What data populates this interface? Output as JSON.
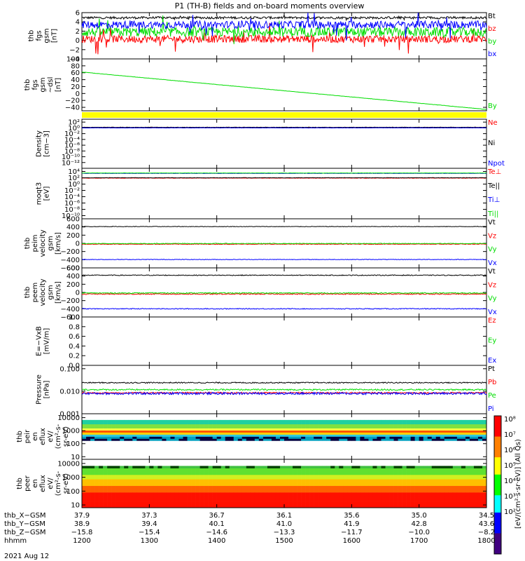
{
  "title": "P1  (TH-B) fields and on-board moments overview",
  "colors": {
    "black": "#000000",
    "red": "#ff0000",
    "green": "#00dd00",
    "blue": "#0000ff",
    "yellow": "#ffff00"
  },
  "chart_data": [
    {
      "id": "fgs",
      "type": "line",
      "ylabel": [
        "thb",
        "fgs",
        "gsm",
        "[nT]"
      ],
      "yrange": [
        -4,
        6
      ],
      "yticks": [
        {
          "v": 6,
          "t": "6"
        },
        {
          "v": 4,
          "t": "4"
        },
        {
          "v": 2,
          "t": "2"
        },
        {
          "v": 0,
          "t": "0"
        },
        {
          "v": -2,
          "t": "−2"
        },
        {
          "v": -4,
          "t": "−4"
        }
      ],
      "series": [
        {
          "name": "Bt",
          "color": "black",
          "base": 4.9,
          "noise": 0.25,
          "spikes": 0.2
        },
        {
          "name": "bz",
          "color": "red",
          "base": 0.3,
          "noise": 0.8,
          "spikes": 1.5
        },
        {
          "name": "by",
          "color": "green",
          "base": 1.8,
          "noise": 1.0,
          "spikes": 1.8
        },
        {
          "name": "bx",
          "color": "blue",
          "base": 3.4,
          "noise": 0.8,
          "spikes": 1.5
        }
      ]
    },
    {
      "id": "fgs_dsl",
      "type": "line",
      "ylabel": [
        "thb",
        "fgs",
        "gsm",
        "~dsl",
        "[nT]"
      ],
      "yrange": [
        -50,
        100
      ],
      "yticks": [
        {
          "v": 100,
          "t": "100"
        },
        {
          "v": 80,
          "t": "80"
        },
        {
          "v": 60,
          "t": "60"
        },
        {
          "v": 40,
          "t": "40"
        },
        {
          "v": 20,
          "t": "20"
        },
        {
          "v": 0,
          "t": "0"
        },
        {
          "v": -20,
          "t": "−20"
        },
        {
          "v": -40,
          "t": "−40"
        }
      ],
      "series": [
        {
          "name": "By",
          "color": "green",
          "start": 62,
          "end": -46
        }
      ]
    },
    {
      "id": "density",
      "type": "line",
      "ylabel": [
        "Density",
        "[cm−3]"
      ],
      "yrange": [
        -14,
        3
      ],
      "log": true,
      "yticks": [
        {
          "v": 2,
          "t": "10²"
        },
        {
          "v": 0,
          "t": "10⁰"
        },
        {
          "v": -2,
          "t": "10⁻²"
        },
        {
          "v": -4,
          "t": "10⁻⁴"
        },
        {
          "v": -6,
          "t": "10⁻⁶"
        },
        {
          "v": -8,
          "t": "10⁻⁸"
        },
        {
          "v": -10,
          "t": "10⁻¹⁰"
        },
        {
          "v": -12,
          "t": "10⁻¹²"
        }
      ],
      "series": [
        {
          "name": "Ne",
          "color": "red",
          "base": 0.1,
          "noise": 0.05
        },
        {
          "name": "Ni",
          "color": "black",
          "base": 0.2,
          "noise": 0.05
        },
        {
          "name": "Npot",
          "color": "blue",
          "base": 0.0,
          "noise": 0.05
        }
      ]
    },
    {
      "id": "temp",
      "type": "line",
      "ylabel": [
        "moqt3",
        "[eV]"
      ],
      "yrange": [
        -11,
        5
      ],
      "log": true,
      "yticks": [
        {
          "v": 4,
          "t": "10⁴"
        },
        {
          "v": 2,
          "t": "10²"
        },
        {
          "v": 0,
          "t": "10⁰"
        },
        {
          "v": -2,
          "t": "10⁻²"
        },
        {
          "v": -4,
          "t": "10⁻⁴"
        },
        {
          "v": -6,
          "t": "10⁻⁶"
        },
        {
          "v": -8,
          "t": "10⁻⁸"
        },
        {
          "v": -10,
          "t": "10⁻¹⁰"
        }
      ],
      "series": [
        {
          "name": "Te⊥",
          "color": "red",
          "base": 1.9,
          "noise": 0.05
        },
        {
          "name": "Te||",
          "color": "black",
          "base": 2.0,
          "noise": 0.05
        },
        {
          "name": "Ti⊥",
          "color": "blue",
          "base": 3.4,
          "noise": 0.05
        },
        {
          "name": "Ti||",
          "color": "green",
          "base": 3.5,
          "noise": 0.05
        }
      ]
    },
    {
      "id": "peim",
      "type": "line",
      "ylabel": [
        "thb",
        "peim",
        "velocity",
        "gsm",
        "[km/s]"
      ],
      "yrange": [
        -600,
        600
      ],
      "yticks": [
        {
          "v": 600,
          "t": "600"
        },
        {
          "v": 400,
          "t": "400"
        },
        {
          "v": 200,
          "t": "200"
        },
        {
          "v": 0,
          "t": "0"
        },
        {
          "v": -200,
          "t": "−200"
        },
        {
          "v": -400,
          "t": "−400"
        },
        {
          "v": -600,
          "t": "−600"
        }
      ],
      "series": [
        {
          "name": "Vt",
          "color": "black",
          "base": 410,
          "noise": 6
        },
        {
          "name": "Vz",
          "color": "red",
          "base": -20,
          "noise": 8
        },
        {
          "name": "Vy",
          "color": "green",
          "base": -5,
          "noise": 8
        },
        {
          "name": "Vx",
          "color": "blue",
          "base": -395,
          "noise": 6
        }
      ]
    },
    {
      "id": "peem",
      "type": "line",
      "ylabel": [
        "thb",
        "peem",
        "velocity",
        "gsm",
        "[km/s]"
      ],
      "yrange": [
        -600,
        600
      ],
      "yticks": [
        {
          "v": 600,
          "t": "600"
        },
        {
          "v": 400,
          "t": "400"
        },
        {
          "v": 200,
          "t": "200"
        },
        {
          "v": 0,
          "t": "0"
        },
        {
          "v": -200,
          "t": "−200"
        },
        {
          "v": -400,
          "t": "−400"
        },
        {
          "v": -600,
          "t": "−600"
        }
      ],
      "series": [
        {
          "name": "Vt",
          "color": "black",
          "base": 420,
          "noise": 10
        },
        {
          "name": "Vz",
          "color": "red",
          "base": -40,
          "noise": 12
        },
        {
          "name": "Vy",
          "color": "green",
          "base": -15,
          "noise": 12
        },
        {
          "name": "Vx",
          "color": "blue",
          "base": -400,
          "noise": 10
        }
      ]
    },
    {
      "id": "efield",
      "type": "line",
      "ylabel": [
        "E=−VxB",
        "[mV/m]"
      ],
      "yrange": [
        0,
        1
      ],
      "yticks": [
        {
          "v": 1,
          "t": "1.0"
        },
        {
          "v": 0.8,
          "t": "0.8"
        },
        {
          "v": 0.6,
          "t": "0.6"
        },
        {
          "v": 0.4,
          "t": "0.4"
        },
        {
          "v": 0.2,
          "t": "0.2"
        },
        {
          "v": 0,
          "t": "0.0"
        }
      ],
      "series": [
        {
          "name": "Ez",
          "color": "red"
        },
        {
          "name": "Ey",
          "color": "green"
        },
        {
          "name": "Ex",
          "color": "blue"
        }
      ]
    },
    {
      "id": "pressure",
      "type": "line",
      "ylabel": [
        "Pressure",
        "[nPa]"
      ],
      "yrange": [
        -3,
        -0.85
      ],
      "log": true,
      "yticks": [
        {
          "v": -1,
          "t": "0.100"
        },
        {
          "v": -2,
          "t": "0.010"
        },
        {
          "v": -3,
          "t": "0.001"
        }
      ],
      "series": [
        {
          "name": "Pt",
          "color": "black",
          "base": -1.62,
          "noise": 0.025
        },
        {
          "name": "Pb",
          "color": "red",
          "base": -2.07,
          "noise": 0.03
        },
        {
          "name": "Pe",
          "color": "green",
          "base": -1.93,
          "noise": 0.03
        },
        {
          "name": "Pi",
          "color": "blue",
          "base": -2.1,
          "noise": 0.05
        }
      ]
    },
    {
      "id": "peir",
      "type": "heatmap",
      "ylabel": [
        "thb",
        "peir",
        "en",
        "eflux",
        "eV/",
        "(cm²-s-",
        "sr-eV)"
      ],
      "yrange": [
        0.8,
        4.3
      ],
      "log": true,
      "yticks": [
        {
          "v": 4,
          "t": "10000"
        },
        {
          "v": 3,
          "t": "1000"
        },
        {
          "v": 2,
          "t": "100"
        },
        {
          "v": 1,
          "t": "10"
        }
      ]
    },
    {
      "id": "peer",
      "type": "heatmap",
      "ylabel": [
        "thb",
        "peer",
        "en",
        "eflux",
        "eV/",
        "(cm²-s-",
        "sr-eV)"
      ],
      "yrange": [
        0.8,
        4.3
      ],
      "log": true,
      "yticks": [
        {
          "v": 4,
          "t": "10000"
        },
        {
          "v": 3,
          "t": "1000"
        },
        {
          "v": 2,
          "t": "100"
        },
        {
          "v": 1,
          "t": "10"
        }
      ]
    }
  ],
  "colorbar": {
    "ticks": [
      {
        "v": 8,
        "t": "10⁸"
      },
      {
        "v": 7,
        "t": "10⁷"
      },
      {
        "v": 6,
        "t": "10⁶"
      },
      {
        "v": 5,
        "t": "10⁵"
      },
      {
        "v": 4,
        "t": "10⁴"
      },
      {
        "v": 3,
        "t": "10³"
      },
      {
        "v": 2,
        "t": "10²"
      }
    ],
    "label": "[eV/(cm²·s·sr·eV)] (All Qs)"
  },
  "xaxis": {
    "rows": [
      {
        "label": "thb_X−GSM",
        "values": [
          "37.9",
          "37.3",
          "36.7",
          "36.1",
          "35.6",
          "35.0",
          "34.5"
        ]
      },
      {
        "label": "thb_Y−GSM",
        "values": [
          "38.9",
          "39.4",
          "40.1",
          "41.0",
          "41.9",
          "42.8",
          "43.6"
        ]
      },
      {
        "label": "thb_Z−GSM",
        "values": [
          "−15.8",
          "−15.4",
          "−14.6",
          "−13.3",
          "−11.7",
          "−10.0",
          "−8.2"
        ]
      },
      {
        "label": "hhmm",
        "values": [
          "1200",
          "1300",
          "1400",
          "1500",
          "1600",
          "1700",
          "1800"
        ]
      }
    ],
    "date": "2021 Aug 12"
  }
}
